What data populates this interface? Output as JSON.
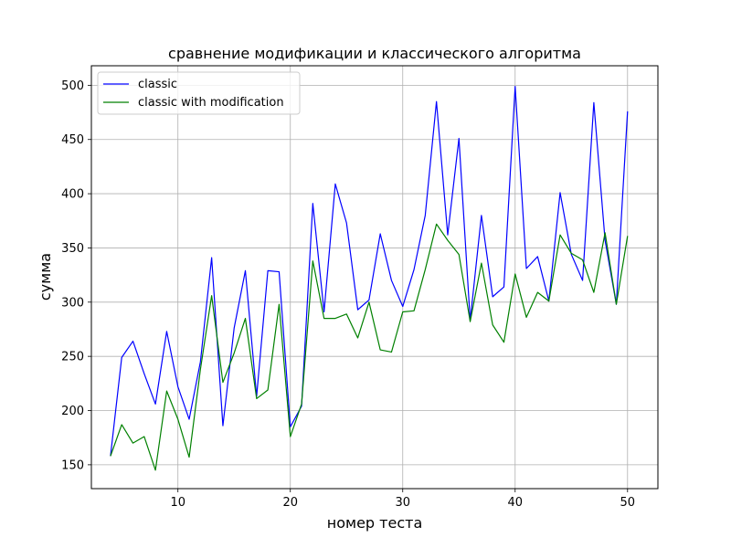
{
  "chart_data": {
    "type": "line",
    "title": "сравнение модификации и классического алгоритма",
    "xlabel": "номер теста",
    "ylabel": "сумма",
    "xlim": [
      2.3,
      52.7
    ],
    "ylim": [
      128,
      518
    ],
    "x_ticks": [
      10,
      20,
      30,
      40,
      50
    ],
    "y_ticks": [
      150,
      200,
      250,
      300,
      350,
      400,
      450,
      500
    ],
    "grid": true,
    "legend_position": "upper-left",
    "x": [
      4,
      5,
      6,
      7,
      8,
      9,
      10,
      11,
      12,
      13,
      14,
      15,
      16,
      17,
      18,
      19,
      20,
      21,
      22,
      23,
      24,
      25,
      26,
      27,
      28,
      29,
      30,
      31,
      32,
      33,
      34,
      35,
      36,
      37,
      38,
      39,
      40,
      41,
      42,
      43,
      44,
      45,
      46,
      47,
      48,
      49,
      50
    ],
    "series": [
      {
        "name": "classic",
        "color": "#0000ff",
        "values": [
          158,
          249,
          264,
          234,
          206,
          273,
          222,
          192,
          245,
          341,
          186,
          276,
          329,
          213,
          329,
          328,
          185,
          204,
          391,
          291,
          409,
          373,
          293,
          302,
          363,
          320,
          296,
          330,
          380,
          485,
          362,
          451,
          283,
          380,
          305,
          314,
          499,
          331,
          342,
          301,
          401,
          344,
          320,
          484,
          357,
          298,
          476
        ]
      },
      {
        "name": "classic with modification",
        "color": "#008000",
        "values": [
          158,
          187,
          170,
          176,
          145,
          218,
          192,
          157,
          238,
          306,
          226,
          253,
          285,
          211,
          219,
          298,
          176,
          206,
          338,
          285,
          285,
          289,
          267,
          300,
          256,
          254,
          291,
          292,
          330,
          372,
          357,
          344,
          282,
          336,
          279,
          263,
          326,
          286,
          309,
          301,
          362,
          345,
          339,
          309,
          364,
          298,
          361
        ]
      }
    ]
  }
}
